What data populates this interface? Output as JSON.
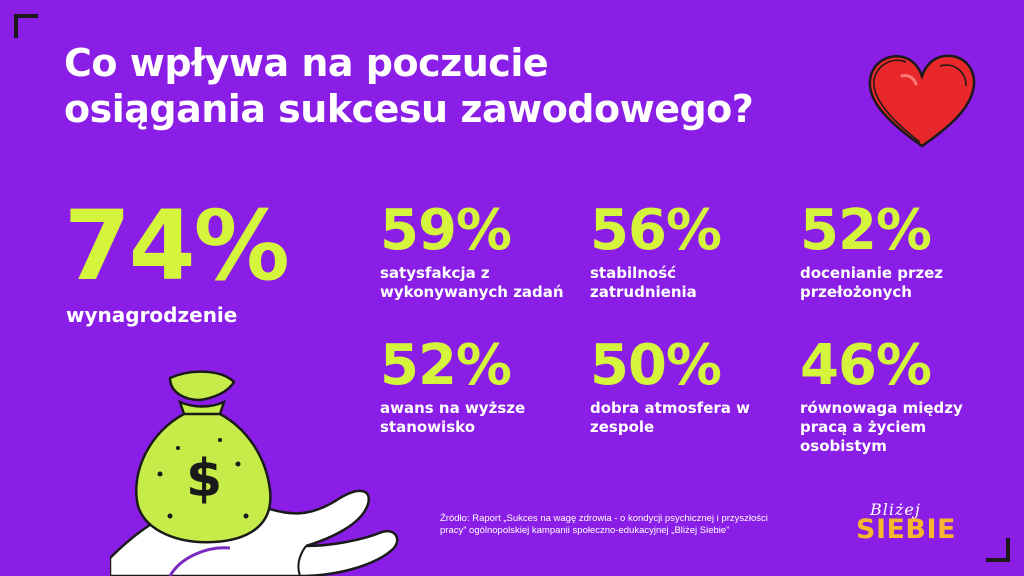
{
  "title": {
    "line1": "Co wpływa na poczucie",
    "line2": "osiągania sukcesu zawodowego?"
  },
  "main_stat": {
    "value": "74%",
    "label": "wynagrodzenie"
  },
  "stats": [
    {
      "value": "59%",
      "label": "satysfakcja z wykonywanych zadań"
    },
    {
      "value": "56%",
      "label": "stabilność zatrudnienia"
    },
    {
      "value": "52%",
      "label": "docenianie przez przełożonych"
    },
    {
      "value": "52%",
      "label": "awans na wyższe stanowisko"
    },
    {
      "value": "50%",
      "label": "dobra atmosfera w zespole"
    },
    {
      "value": "46%",
      "label": "równowaga między pracą a życiem osobistym"
    }
  ],
  "source": {
    "line1": "Źródło: Raport „Sukces na wagę zdrowia - o kondycji psychicznej i przyszłości",
    "line2": "pracy” ogólnopolskiej kampanii społeczno-edukacyjnej „Bliżej Siebie”"
  },
  "logo": {
    "script": "Bliżej",
    "main": "SIEBIE"
  },
  "colors": {
    "background": "#8a1ee6",
    "accent": "#d4f53c",
    "text": "#ffffff",
    "logo": "#f5b52c",
    "heart": "#e8282a"
  },
  "icons": [
    "heart-icon",
    "money-bag-icon",
    "hand-icon"
  ]
}
